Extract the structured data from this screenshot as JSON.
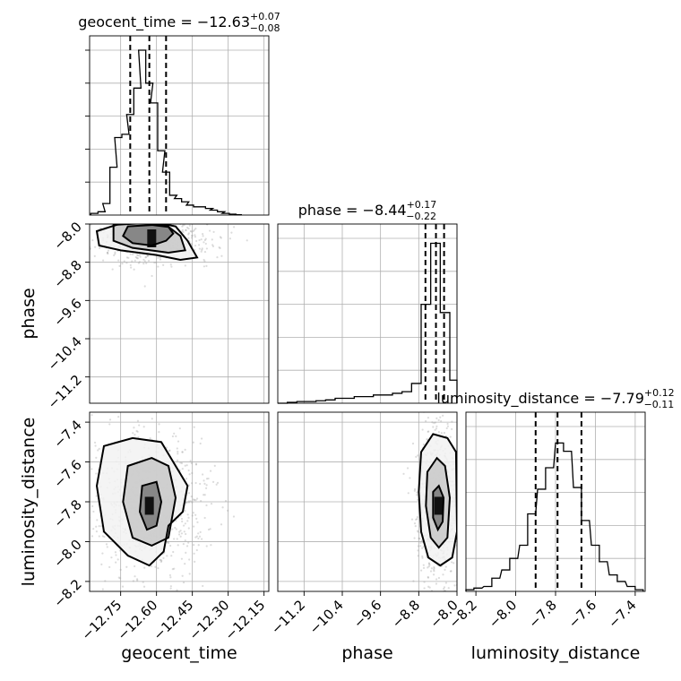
{
  "chart_data": {
    "type": "corner",
    "parameters": [
      {
        "name": "geocent_time",
        "label": "geocent_time",
        "median": -12.63,
        "plus": 0.07,
        "minus": 0.08,
        "title_prefix": "geocent_time = ",
        "title_value": "−12.63",
        "title_sup": "+0.07",
        "title_sub": "−0.08",
        "range": [
          -12.88,
          -12.13
        ],
        "ticks": [
          -12.75,
          -12.6,
          -12.45,
          -12.3,
          -12.15
        ],
        "tick_labels": [
          "−12.75",
          "−12.60",
          "−12.45",
          "−12.30",
          "−12.15"
        ],
        "quantile_lines": [
          -12.71,
          -12.63,
          -12.56
        ],
        "hist_x": [
          -12.86,
          -12.83,
          -12.81,
          -12.78,
          -12.76,
          -12.73,
          -12.71,
          -12.68,
          -12.66,
          -12.63,
          -12.61,
          -12.58,
          -12.56,
          -12.53,
          -12.51,
          -12.48,
          -12.46,
          -12.43,
          -12.41,
          -12.38,
          -12.36,
          -12.33,
          -12.31,
          -12.28,
          -12.26
        ],
        "hist_y": [
          0.01,
          0.02,
          0.07,
          0.29,
          0.47,
          0.49,
          0.61,
          0.77,
          1.0,
          0.8,
          0.68,
          0.39,
          0.26,
          0.12,
          0.1,
          0.08,
          0.06,
          0.05,
          0.05,
          0.04,
          0.03,
          0.02,
          0.01,
          0.005,
          0.002
        ]
      },
      {
        "name": "phase",
        "label": "phase",
        "median": -8.44,
        "plus": 0.17,
        "minus": 0.22,
        "title_prefix": "phase = ",
        "title_value": "−8.44",
        "title_sup": "+0.17",
        "title_sub": "−0.22",
        "range": [
          -11.75,
          -8.0
        ],
        "ticks": [
          -11.2,
          -10.4,
          -9.6,
          -8.8,
          -8.0
        ],
        "tick_labels": [
          "−11.2",
          "−10.4",
          "−9.6",
          "−8.8",
          "−8.0"
        ],
        "quantile_lines": [
          -8.66,
          -8.44,
          -8.27
        ],
        "hist_x": [
          -11.65,
          -11.45,
          -11.25,
          -11.05,
          -10.85,
          -10.65,
          -10.45,
          -10.25,
          -10.05,
          -9.85,
          -9.65,
          -9.45,
          -9.25,
          -9.05,
          -8.85,
          -8.65,
          -8.45,
          -8.25,
          -8.05
        ],
        "hist_y": [
          0.0,
          0.005,
          0.01,
          0.01,
          0.015,
          0.02,
          0.03,
          0.03,
          0.04,
          0.04,
          0.05,
          0.05,
          0.06,
          0.07,
          0.12,
          0.6,
          0.97,
          0.55,
          0.14
        ]
      },
      {
        "name": "luminosity_distance",
        "label": "luminosity_distance",
        "median": -7.79,
        "plus": 0.12,
        "minus": 0.11,
        "title_prefix": "luminosity_distance = ",
        "title_value": "−7.79",
        "title_sup": "+0.12",
        "title_sub": "−0.11",
        "range": [
          -8.25,
          -7.35
        ],
        "ticks": [
          -8.2,
          -8.0,
          -7.8,
          -7.6,
          -7.4
        ],
        "tick_labels": [
          "−8.2",
          "−8.0",
          "−7.8",
          "−7.6",
          "−7.4"
        ],
        "quantile_lines": [
          -7.9,
          -7.79,
          -7.67
        ],
        "hist_x": [
          -8.23,
          -8.19,
          -8.14,
          -8.1,
          -8.05,
          -8.01,
          -7.96,
          -7.92,
          -7.87,
          -7.83,
          -7.78,
          -7.74,
          -7.69,
          -7.65,
          -7.6,
          -7.56,
          -7.51,
          -7.47,
          -7.42,
          -7.38
        ],
        "hist_y": [
          0.01,
          0.02,
          0.03,
          0.08,
          0.13,
          0.2,
          0.28,
          0.47,
          0.62,
          0.75,
          0.9,
          0.85,
          0.63,
          0.43,
          0.28,
          0.18,
          0.1,
          0.06,
          0.03,
          0.01
        ]
      }
    ],
    "hist_ytick_fractions": [
      0.2,
      0.4,
      0.6,
      0.8,
      1.0
    ],
    "pairs": [
      {
        "x_param": "geocent_time",
        "y_param": "phase",
        "mode_x": -12.62,
        "mode_y": -8.3,
        "contours": [
          [
            [
              -12.72,
              -8.05
            ],
            [
              -12.62,
              -8.02
            ],
            [
              -12.55,
              -8.06
            ],
            [
              -12.53,
              -8.2
            ],
            [
              -12.56,
              -8.35
            ],
            [
              -12.62,
              -8.45
            ],
            [
              -12.7,
              -8.4
            ],
            [
              -12.74,
              -8.25
            ]
          ],
          [
            [
              -12.78,
              -8.02
            ],
            [
              -12.65,
              -7.98
            ],
            [
              -12.56,
              -8.02
            ],
            [
              -12.5,
              -8.25
            ],
            [
              -12.48,
              -8.55
            ],
            [
              -12.55,
              -8.6
            ],
            [
              -12.7,
              -8.5
            ],
            [
              -12.78,
              -8.35
            ]
          ],
          [
            [
              -12.85,
              -8.15
            ],
            [
              -12.75,
              -7.99
            ],
            [
              -12.6,
              -7.97
            ],
            [
              -12.52,
              -8.05
            ],
            [
              -12.47,
              -8.35
            ],
            [
              -12.43,
              -8.7
            ],
            [
              -12.5,
              -8.75
            ],
            [
              -12.6,
              -8.65
            ],
            [
              -12.75,
              -8.55
            ],
            [
              -12.84,
              -8.45
            ]
          ]
        ]
      },
      {
        "x_param": "geocent_time",
        "y_param": "luminosity_distance",
        "mode_x": -12.63,
        "mode_y": -7.82,
        "contours": [
          [
            [
              -12.66,
              -7.72
            ],
            [
              -12.6,
              -7.7
            ],
            [
              -12.58,
              -7.8
            ],
            [
              -12.6,
              -7.92
            ],
            [
              -12.64,
              -7.94
            ],
            [
              -12.67,
              -7.85
            ]
          ],
          [
            [
              -12.72,
              -7.62
            ],
            [
              -12.62,
              -7.58
            ],
            [
              -12.55,
              -7.62
            ],
            [
              -12.52,
              -7.78
            ],
            [
              -12.55,
              -7.98
            ],
            [
              -12.62,
              -8.02
            ],
            [
              -12.7,
              -7.98
            ],
            [
              -12.74,
              -7.8
            ]
          ],
          [
            [
              -12.82,
              -7.52
            ],
            [
              -12.7,
              -7.48
            ],
            [
              -12.58,
              -7.5
            ],
            [
              -12.52,
              -7.62
            ],
            [
              -12.47,
              -7.72
            ],
            [
              -12.49,
              -7.85
            ],
            [
              -12.55,
              -7.92
            ],
            [
              -12.57,
              -8.05
            ],
            [
              -12.63,
              -8.12
            ],
            [
              -12.72,
              -8.07
            ],
            [
              -12.82,
              -7.95
            ],
            [
              -12.85,
              -7.72
            ]
          ]
        ]
      },
      {
        "x_param": "phase",
        "y_param": "luminosity_distance",
        "mode_x": -8.38,
        "mode_y": -7.82,
        "contours": [
          [
            [
              -8.5,
              -7.75
            ],
            [
              -8.38,
              -7.72
            ],
            [
              -8.28,
              -7.78
            ],
            [
              -8.3,
              -7.9
            ],
            [
              -8.4,
              -7.94
            ],
            [
              -8.5,
              -7.88
            ]
          ],
          [
            [
              -8.62,
              -7.65
            ],
            [
              -8.42,
              -7.58
            ],
            [
              -8.25,
              -7.62
            ],
            [
              -8.15,
              -7.78
            ],
            [
              -8.2,
              -7.98
            ],
            [
              -8.38,
              -8.03
            ],
            [
              -8.55,
              -7.98
            ],
            [
              -8.65,
              -7.82
            ]
          ],
          [
            [
              -8.75,
              -7.55
            ],
            [
              -8.5,
              -7.46
            ],
            [
              -8.2,
              -7.48
            ],
            [
              -8.02,
              -7.55
            ],
            [
              -8.0,
              -7.95
            ],
            [
              -8.1,
              -8.08
            ],
            [
              -8.35,
              -8.12
            ],
            [
              -8.6,
              -8.08
            ],
            [
              -8.75,
              -7.95
            ],
            [
              -8.8,
              -7.75
            ]
          ]
        ]
      }
    ]
  }
}
